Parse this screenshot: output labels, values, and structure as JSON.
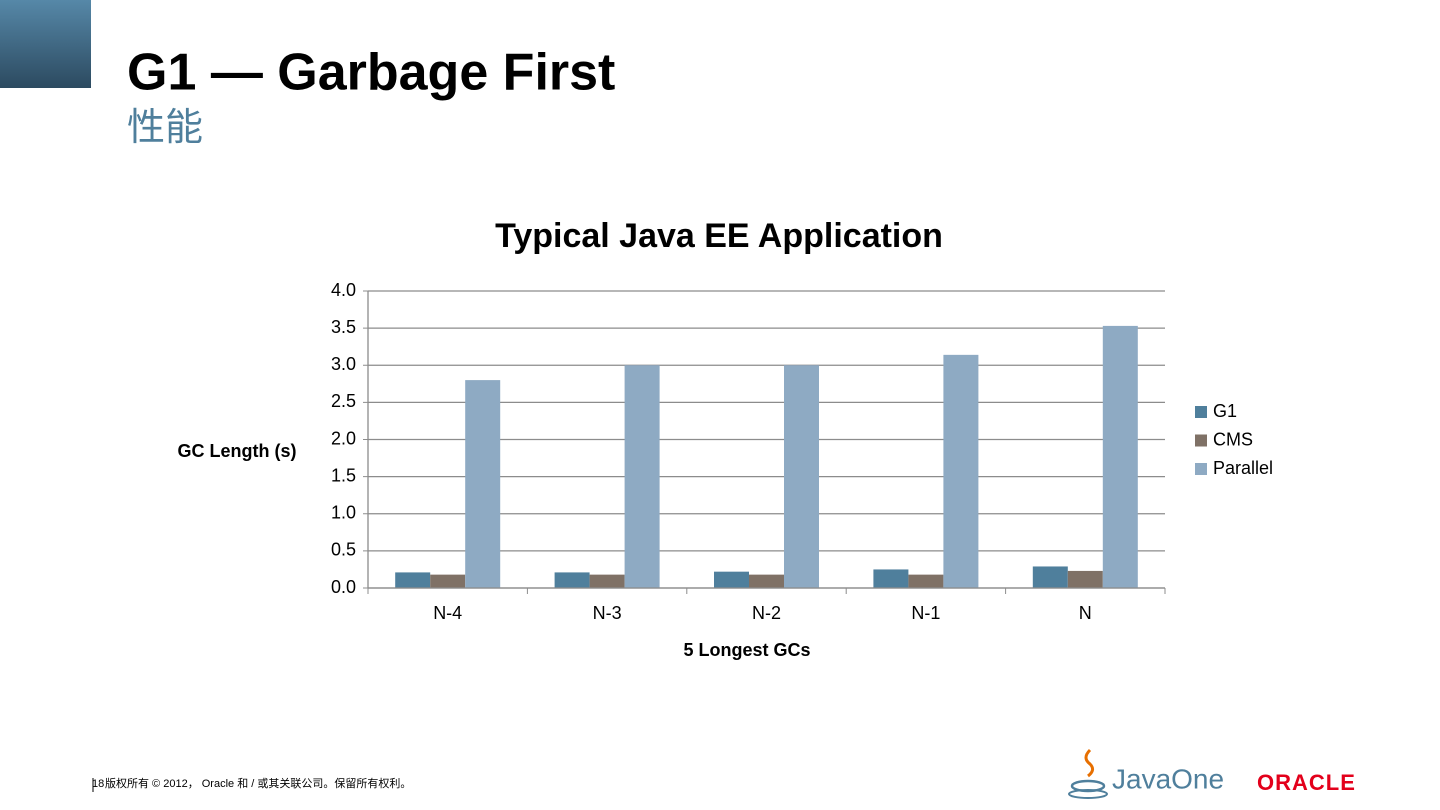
{
  "slide": {
    "title": "G1 — Garbage First",
    "subtitle": "性能",
    "page_number": "18",
    "footer": "版权所有 © 2012， Oracle 和 / 或其关联公司。保留所有权利。",
    "logos": [
      "JavaOne",
      "ORACLE"
    ]
  },
  "chart_data": {
    "type": "bar",
    "title": "Typical Java EE Application",
    "x_label": "5 Longest GCs",
    "y_label": "GC Length (s)",
    "categories": [
      "N-4",
      "N-3",
      "N-2",
      "N-1",
      "N"
    ],
    "series": [
      {
        "name": "G1",
        "color": "#4f7f9c",
        "values": [
          0.21,
          0.21,
          0.22,
          0.25,
          0.29
        ]
      },
      {
        "name": "CMS",
        "color": "#7f7166",
        "values": [
          0.18,
          0.18,
          0.18,
          0.18,
          0.23
        ]
      },
      {
        "name": "Parallel",
        "color": "#8eaac3",
        "values": [
          2.8,
          3.0,
          3.0,
          3.14,
          3.53
        ]
      }
    ],
    "ylim": [
      0,
      4
    ],
    "yticks": [
      {
        "value": 0,
        "label": "0.0"
      },
      0.5,
      {
        "value": 1,
        "label": "1.0"
      },
      1.5,
      {
        "value": 2,
        "label": "2.0"
      },
      2.5,
      {
        "value": 3,
        "label": "3.0"
      },
      3.5,
      {
        "value": 4,
        "label": "4.0"
      }
    ],
    "grid": true,
    "legend": "right"
  }
}
